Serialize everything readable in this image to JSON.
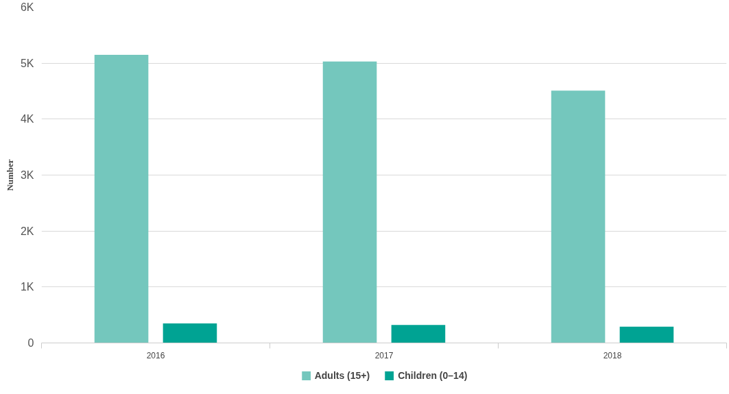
{
  "chart_data": {
    "type": "bar",
    "ylabel": "Number",
    "categories": [
      "2016",
      "2017",
      "2018"
    ],
    "series": [
      {
        "name": "Adults (15+)",
        "color": "#74c7bd",
        "values": [
          5150,
          5030,
          4510
        ]
      },
      {
        "name": "Children (0–14)",
        "color": "#00a393",
        "values": [
          350,
          320,
          290
        ]
      }
    ],
    "ylim": [
      0,
      6000
    ],
    "yticks": [
      0,
      {
        "value": 1000,
        "label": "1K"
      },
      {
        "value": 2000,
        "label": "2K"
      },
      {
        "value": 3000,
        "label": "3K"
      },
      {
        "value": 4000,
        "label": "4K"
      },
      {
        "value": 5000,
        "label": "5K"
      },
      {
        "value": 6000,
        "label": "6K"
      }
    ],
    "grid": "y",
    "legend": "bottom"
  }
}
